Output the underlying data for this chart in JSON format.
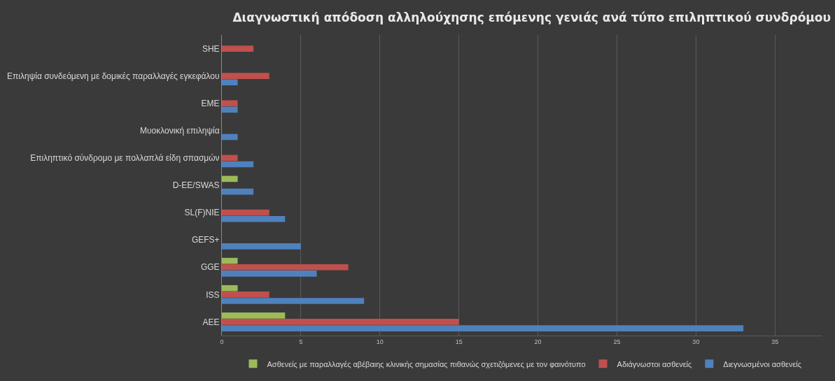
{
  "chart_data": {
    "type": "bar",
    "orientation": "horizontal",
    "title": "Διαγνωστική απόδοση αλληλούχησης επόμενης γενιάς ανά τύπο επιληπτικού συνδρόμου",
    "categories": [
      "SHE",
      "Επιληψία συνδεόμενη με δομικές παραλλαγές εγκεφάλου",
      "EME",
      "Μυοκλονική επιληψία",
      "Επιληπτικό σύνδρομο με πολλαπλά είδη σπασμών",
      "D-EE/SWAS",
      "SL(F)NIE",
      "GEFS+",
      "GGE",
      "ISS",
      "AEE"
    ],
    "series": [
      {
        "name": "Ασθενείς με παραλλαγές αβέβαιης κλινικής σημασίας πιθανώς σχετιζόμενες με τον φαινότυπο",
        "color": "#9bbb59",
        "values": [
          null,
          null,
          null,
          null,
          null,
          1,
          null,
          null,
          1,
          1,
          4
        ]
      },
      {
        "name": "Αδιάγνωστοι ασθενείς",
        "color": "#c0504d",
        "values": [
          2,
          3,
          1,
          null,
          1,
          null,
          3,
          null,
          8,
          3,
          15
        ]
      },
      {
        "name": "Διεγνωσμένοι ασθενείς",
        "color": "#4f81bd",
        "values": [
          null,
          1,
          1,
          1,
          2,
          2,
          4,
          5,
          6,
          9,
          33
        ]
      }
    ],
    "xlim": [
      0,
      38
    ],
    "xticks": [
      0,
      5,
      10,
      15,
      20,
      25,
      30,
      35
    ],
    "grid": "x",
    "legend": "bottom"
  }
}
